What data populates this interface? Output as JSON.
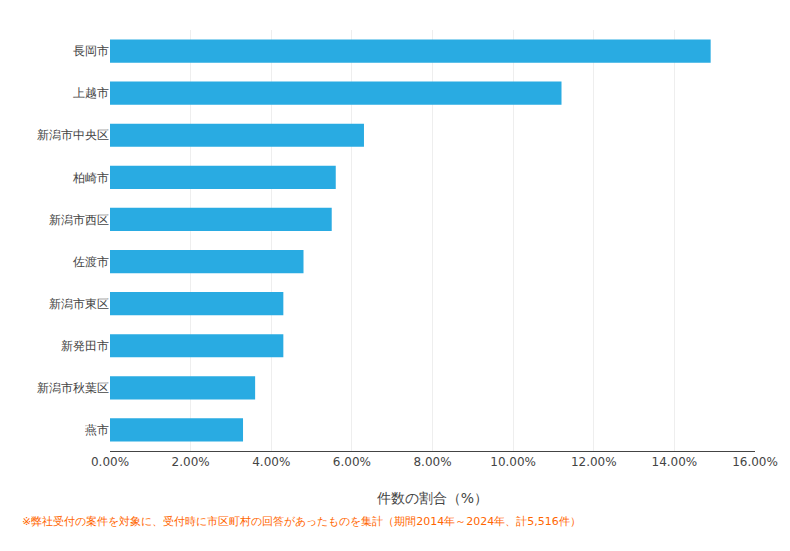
{
  "chart_data": {
    "type": "bar",
    "orientation": "horizontal",
    "categories": [
      "長岡市",
      "上越市",
      "新潟市中央区",
      "柏崎市",
      "新潟市西区",
      "佐渡市",
      "新潟市東区",
      "新発田市",
      "新潟市秋葉区",
      "燕市"
    ],
    "values": [
      14.9,
      11.2,
      6.3,
      5.6,
      5.5,
      4.8,
      4.3,
      4.3,
      3.6,
      3.3
    ],
    "color": "#29ABE2",
    "xlabel": "件数の割合（%）",
    "xlim": [
      0,
      16.0
    ],
    "xticks": [
      {
        "value": 0,
        "label": "0.00%"
      },
      {
        "value": 2,
        "label": "2.00%"
      },
      {
        "value": 4,
        "label": "4.00%"
      },
      {
        "value": 6,
        "label": "6.00%"
      },
      {
        "value": 8,
        "label": "8.00%"
      },
      {
        "value": 10,
        "label": "10.00%"
      },
      {
        "value": 12,
        "label": "12.00%"
      },
      {
        "value": 14,
        "label": "14.00%"
      },
      {
        "value": 16,
        "label": "16.00%"
      }
    ],
    "grid": true,
    "annotations": [
      {
        "text": "※弊社受付の案件を対象に、受付時に市区町村の回答があったものを集計（期間2014年～2024年、計5,516件）",
        "color": "#FF6600"
      }
    ]
  }
}
